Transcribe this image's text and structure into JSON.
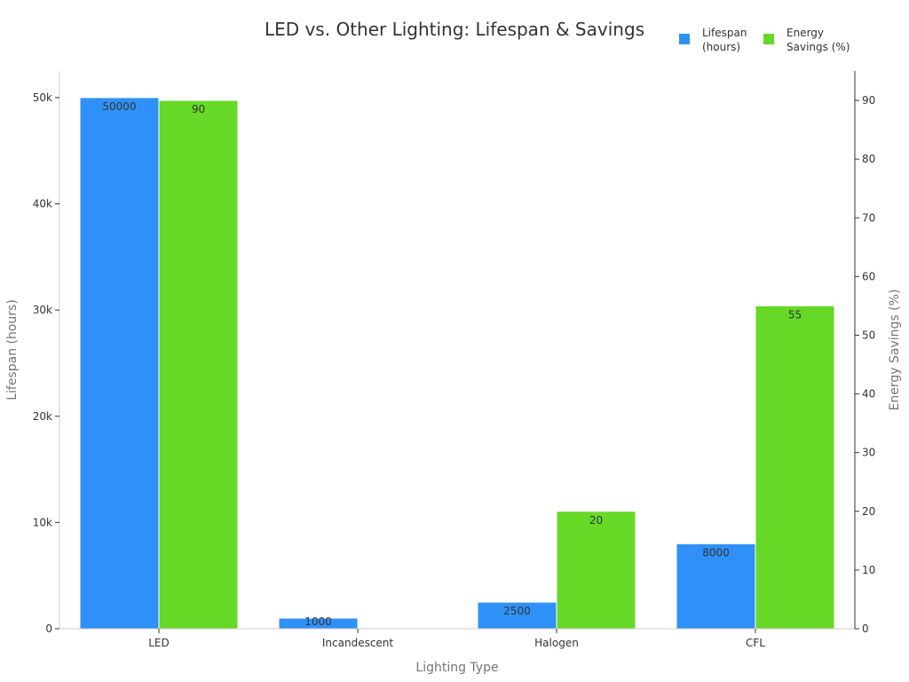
{
  "chart_data": {
    "type": "bar",
    "title": "LED vs. Other Lighting: Lifespan & Savings",
    "xlabel": "Lighting Type",
    "ylabel_left": "Lifespan (hours)",
    "ylabel_right": "Energy Savings (%)",
    "categories": [
      "LED",
      "Incandescent",
      "Halogen",
      "CFL"
    ],
    "series": [
      {
        "name": "Lifespan (hours)",
        "legend_lines": [
          "Lifespan",
          "(hours)"
        ],
        "axis": "left",
        "color": "#2f91f7",
        "values": [
          50000,
          1000,
          2500,
          8000
        ],
        "labels": [
          "50000",
          "1000",
          "2500",
          "8000"
        ]
      },
      {
        "name": "Energy Savings (%)",
        "legend_lines": [
          "Energy",
          "Savings (%)"
        ],
        "axis": "right",
        "color": "#66d926",
        "values": [
          90,
          0,
          20,
          55
        ],
        "labels": [
          "90",
          "",
          "20",
          "55"
        ]
      }
    ],
    "left_axis": {
      "min": 0,
      "max": 52500,
      "ticks": [
        0,
        10000,
        20000,
        30000,
        40000,
        50000
      ],
      "tick_labels": [
        "0",
        "10k",
        "20k",
        "30k",
        "40k",
        "50k"
      ]
    },
    "right_axis": {
      "min": 0,
      "max": 95,
      "ticks": [
        0,
        10,
        20,
        30,
        40,
        50,
        60,
        70,
        80,
        90
      ],
      "tick_labels": [
        "0",
        "10",
        "20",
        "30",
        "40",
        "50",
        "60",
        "70",
        "80",
        "90"
      ]
    },
    "legend_position": "top-right",
    "grid": false
  }
}
